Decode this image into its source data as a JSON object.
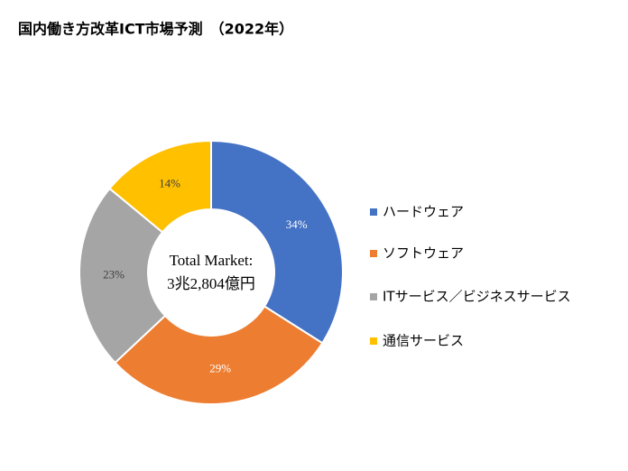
{
  "chart_data": {
    "type": "donut",
    "title": "国内働き方改革ICT市場予測　（2022年）",
    "categories": [
      "ハードウェア",
      "ソフトウェア",
      "ITサービス／ビジネスサービス",
      "通信サービス"
    ],
    "values": [
      34,
      29,
      23,
      14
    ],
    "value_labels": [
      "34%",
      "29%",
      "23%",
      "14%"
    ],
    "colors": [
      "#4472c4",
      "#ed7d31",
      "#a5a5a5",
      "#ffc000"
    ],
    "center_text": [
      "Total Market:",
      "3兆2,804億円"
    ],
    "legend": "right"
  }
}
